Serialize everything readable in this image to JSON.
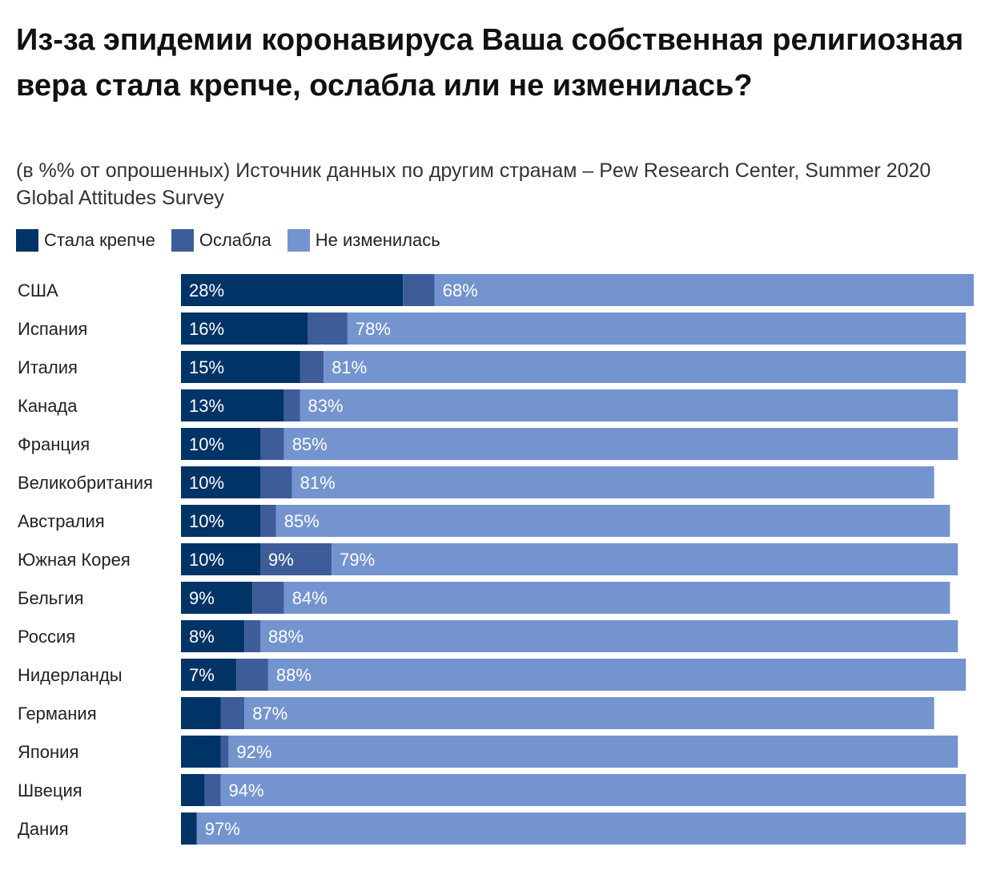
{
  "title": "Из-за эпидемии коронавируса Ваша собственная религиозная вера стала крепче, ослабла или не изменилась?",
  "subtitle": "(в %% от опрошенных) Источник данных по другим странам – Pew Research Center, Summer 2020 Global Attitudes Survey",
  "legend": [
    {
      "label": "Стала крепче",
      "color": "#003366"
    },
    {
      "label": "Ослабла",
      "color": "#3e5c99"
    },
    {
      "label": "Не изменилась",
      "color": "#7494cf"
    }
  ],
  "chart_data": {
    "type": "bar",
    "orientation": "horizontal",
    "stacked": true,
    "title": "Из-за эпидемии коронавируса Ваша собственная религиозная вера стала крепче, ослабла или не изменилась?",
    "xlim": [
      0,
      100
    ],
    "legend_position": "top-left",
    "categories": [
      "США",
      "Испания",
      "Италия",
      "Канада",
      "Франция",
      "Великобритания",
      "Австралия",
      "Южная Корея",
      "Бельгия",
      "Россия",
      "Нидерланды",
      "Германия",
      "Япония",
      "Швеция",
      "Дания"
    ],
    "series": [
      {
        "name": "Стала крепче",
        "color": "#003366",
        "values": [
          28,
          16,
          15,
          13,
          10,
          10,
          10,
          10,
          9,
          8,
          7,
          5,
          5,
          3,
          2
        ],
        "labels": [
          "28%",
          "16%",
          "15%",
          "13%",
          "10%",
          "10%",
          "10%",
          "10%",
          "9%",
          "8%",
          "7%",
          "",
          "",
          "",
          ""
        ]
      },
      {
        "name": "Ослабла",
        "color": "#3e5c99",
        "values": [
          4,
          5,
          3,
          2,
          3,
          4,
          2,
          9,
          4,
          2,
          4,
          3,
          1,
          2,
          0
        ],
        "labels": [
          "",
          "",
          "",
          "",
          "",
          "",
          "",
          "9%",
          "",
          "",
          "",
          "",
          "",
          "",
          ""
        ]
      },
      {
        "name": "Не изменилась",
        "color": "#7494cf",
        "values": [
          68,
          78,
          81,
          83,
          85,
          81,
          85,
          79,
          84,
          88,
          88,
          87,
          92,
          94,
          97
        ],
        "labels": [
          "68%",
          "78%",
          "81%",
          "83%",
          "85%",
          "81%",
          "85%",
          "79%",
          "84%",
          "88%",
          "88%",
          "87%",
          "92%",
          "94%",
          "97%"
        ]
      }
    ]
  }
}
